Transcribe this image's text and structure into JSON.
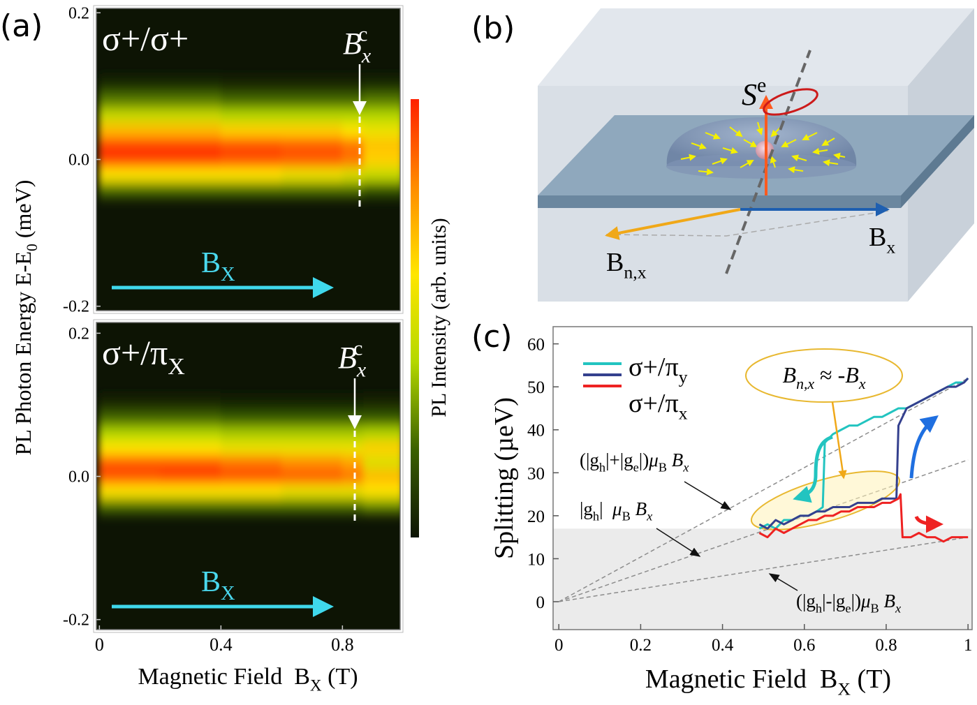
{
  "panel_labels": [
    "(a)",
    "(b)",
    "(c)"
  ],
  "diagram": {
    "spin": [
      "S",
      "e"
    ],
    "field": [
      "B",
      "x"
    ],
    "nuclear_field": [
      "B",
      "n,x"
    ]
  },
  "chart_data": [
    {
      "type": "heatmap",
      "label": [
        "σ+/σ+"
      ],
      "critical": [
        "B",
        "x",
        "c"
      ],
      "arrow_label": [
        "B",
        "X"
      ],
      "ylabel": [
        "PL Photon Energy E-E",
        "0",
        " (meV)"
      ],
      "colorbar_label": "PL Intensity (arb. units)",
      "colormap": [
        "#0d1404",
        "#3a6000",
        "#b4d800",
        "#ffe600",
        "#ff8c00",
        "#ff2000"
      ],
      "xlim": [
        -0.01,
        0.99
      ],
      "ylim": [
        -0.206,
        0.206
      ],
      "yticks": [
        -0.2,
        {
          "value": 0,
          "label": "0.0"
        },
        0.2
      ],
      "xbins": [
        0,
        0.2,
        0.4,
        0.6,
        0.8,
        0.87,
        1
      ],
      "ybins": [
        -0.05,
        -0.03,
        -0.01,
        0.01,
        0.03,
        0.05,
        0.07,
        0.09,
        0.11
      ],
      "values": [
        [
          0.25,
          0.25,
          0.25,
          0.25,
          0.25,
          0.2
        ],
        [
          0.6,
          0.6,
          0.6,
          0.55,
          0.5,
          0.45
        ],
        [
          0.95,
          0.95,
          0.92,
          0.9,
          0.85,
          0.65
        ],
        [
          0.95,
          0.95,
          0.92,
          0.9,
          0.85,
          0.68
        ],
        [
          0.7,
          0.7,
          0.65,
          0.65,
          0.6,
          0.55
        ],
        [
          0.45,
          0.45,
          0.4,
          0.4,
          0.4,
          0.4
        ],
        [
          0.25,
          0.25,
          0.22,
          0.22,
          0.22,
          0.25
        ],
        [
          0.08,
          0.08,
          0.06,
          0.06,
          0.06,
          0.08
        ]
      ]
    },
    {
      "type": "heatmap",
      "label": [
        "σ+/π",
        "X"
      ],
      "critical": [
        "B",
        "x",
        "c"
      ],
      "arrow_label": [
        "B",
        "X"
      ],
      "xlabel": [
        "Magnetic Field  B",
        "X",
        " (T)"
      ],
      "xlim": [
        -0.01,
        0.99
      ],
      "ylim": [
        -0.214,
        0.215
      ],
      "yticks": [
        -0.2,
        {
          "value": 0,
          "label": "0.0"
        },
        0.2
      ],
      "xticks": [
        0,
        0.4,
        0.8
      ],
      "xbins": [
        0,
        0.2,
        0.4,
        0.6,
        0.8,
        0.87,
        1
      ],
      "ybins": [
        -0.05,
        -0.03,
        -0.01,
        0.01,
        0.03,
        0.05,
        0.07,
        0.09,
        0.11
      ],
      "values": [
        [
          0.25,
          0.25,
          0.25,
          0.25,
          0.25,
          0.3
        ],
        [
          0.6,
          0.6,
          0.6,
          0.55,
          0.55,
          0.6
        ],
        [
          0.92,
          0.95,
          0.92,
          0.9,
          0.85,
          0.7
        ],
        [
          0.9,
          0.9,
          0.85,
          0.8,
          0.75,
          0.5
        ],
        [
          0.6,
          0.6,
          0.55,
          0.55,
          0.55,
          0.65
        ],
        [
          0.4,
          0.4,
          0.38,
          0.38,
          0.38,
          0.4
        ],
        [
          0.22,
          0.22,
          0.2,
          0.2,
          0.2,
          0.2
        ],
        [
          0.06,
          0.06,
          0.05,
          0.05,
          0.05,
          0.06
        ]
      ]
    },
    {
      "type": "line",
      "xlabel": [
        "Magnetic Field  B",
        "X",
        " (T)"
      ],
      "ylabel": "Splitting (µeV)",
      "xlim": [
        -0.014,
        1.01
      ],
      "ylim": [
        -6.5,
        64
      ],
      "xticks": [
        0,
        0.2,
        0.4,
        0.6,
        0.8,
        1
      ],
      "yticks": [
        0,
        10,
        20,
        30,
        40,
        50,
        60
      ],
      "shade_top": 17,
      "annotation": [
        "B",
        "n,x",
        " ≈ -",
        "B",
        "x"
      ],
      "guides": [
        {
          "color": "#8c8c8c",
          "x": [
            0,
            1
          ],
          "values": [
            0,
            52
          ],
          "label": [
            "(|g",
            "h",
            "|+|g",
            "e",
            "|)",
            "μ",
            "B",
            " B",
            "x"
          ]
        },
        {
          "color": "#8c8c8c",
          "x": [
            0,
            1
          ],
          "values": [
            0,
            33
          ],
          "label": [
            "|g",
            "h",
            "|  ",
            "μ",
            "B",
            " B",
            "x"
          ]
        },
        {
          "color": "#8c8c8c",
          "x": [
            0,
            1
          ],
          "values": [
            0,
            15
          ],
          "label": [
            "(|g",
            "h",
            "|-|g",
            "e",
            "|)",
            "μ",
            "B",
            " B",
            "x"
          ]
        }
      ],
      "series": [
        {
          "name": [
            "σ+/π",
            "y"
          ],
          "color": "#22c4c0",
          "x": [
            0.49,
            0.51,
            0.53,
            0.55,
            0.57,
            0.59,
            0.61,
            0.63,
            0.645,
            0.65,
            0.67,
            0.69,
            0.71,
            0.73,
            0.75,
            0.77,
            0.79,
            0.81,
            0.83,
            0.85,
            0.87,
            0.89,
            0.91,
            0.93,
            0.95,
            0.97,
            0.99,
            1.0
          ],
          "values": [
            17,
            18,
            17,
            19,
            19,
            20,
            20,
            21,
            22,
            37,
            39,
            40,
            41,
            41,
            42,
            43,
            43,
            44,
            45,
            45,
            46,
            47,
            48,
            49,
            50,
            51,
            51,
            52
          ]
        },
        {
          "color": "#34408e",
          "x": [
            0.49,
            0.51,
            0.53,
            0.55,
            0.57,
            0.59,
            0.61,
            0.63,
            0.65,
            0.67,
            0.69,
            0.71,
            0.73,
            0.75,
            0.77,
            0.79,
            0.81,
            0.825,
            0.83,
            0.85,
            0.87,
            0.89,
            0.91,
            0.93,
            0.95,
            0.97,
            0.99,
            1.0
          ],
          "values": [
            18,
            17,
            19,
            18,
            19,
            20,
            20,
            21,
            21,
            22,
            22,
            22,
            23,
            23,
            23,
            24,
            24,
            24,
            41,
            45,
            46,
            47,
            48,
            49,
            50,
            50,
            51,
            52
          ]
        },
        {
          "name": [
            "σ+/π",
            "x"
          ],
          "color": "#ee2222",
          "x": [
            0.49,
            0.51,
            0.53,
            0.55,
            0.57,
            0.59,
            0.61,
            0.63,
            0.65,
            0.67,
            0.69,
            0.71,
            0.73,
            0.75,
            0.77,
            0.79,
            0.81,
            0.83,
            0.835,
            0.84,
            0.86,
            0.88,
            0.9,
            0.92,
            0.94,
            0.96,
            0.98,
            1.0
          ],
          "values": [
            16,
            15,
            17,
            16,
            17,
            18,
            19,
            19,
            20,
            20,
            21,
            21,
            22,
            22,
            22,
            23,
            23,
            24,
            25,
            15,
            15,
            16,
            15,
            15,
            14,
            15,
            15,
            15
          ]
        }
      ]
    }
  ]
}
